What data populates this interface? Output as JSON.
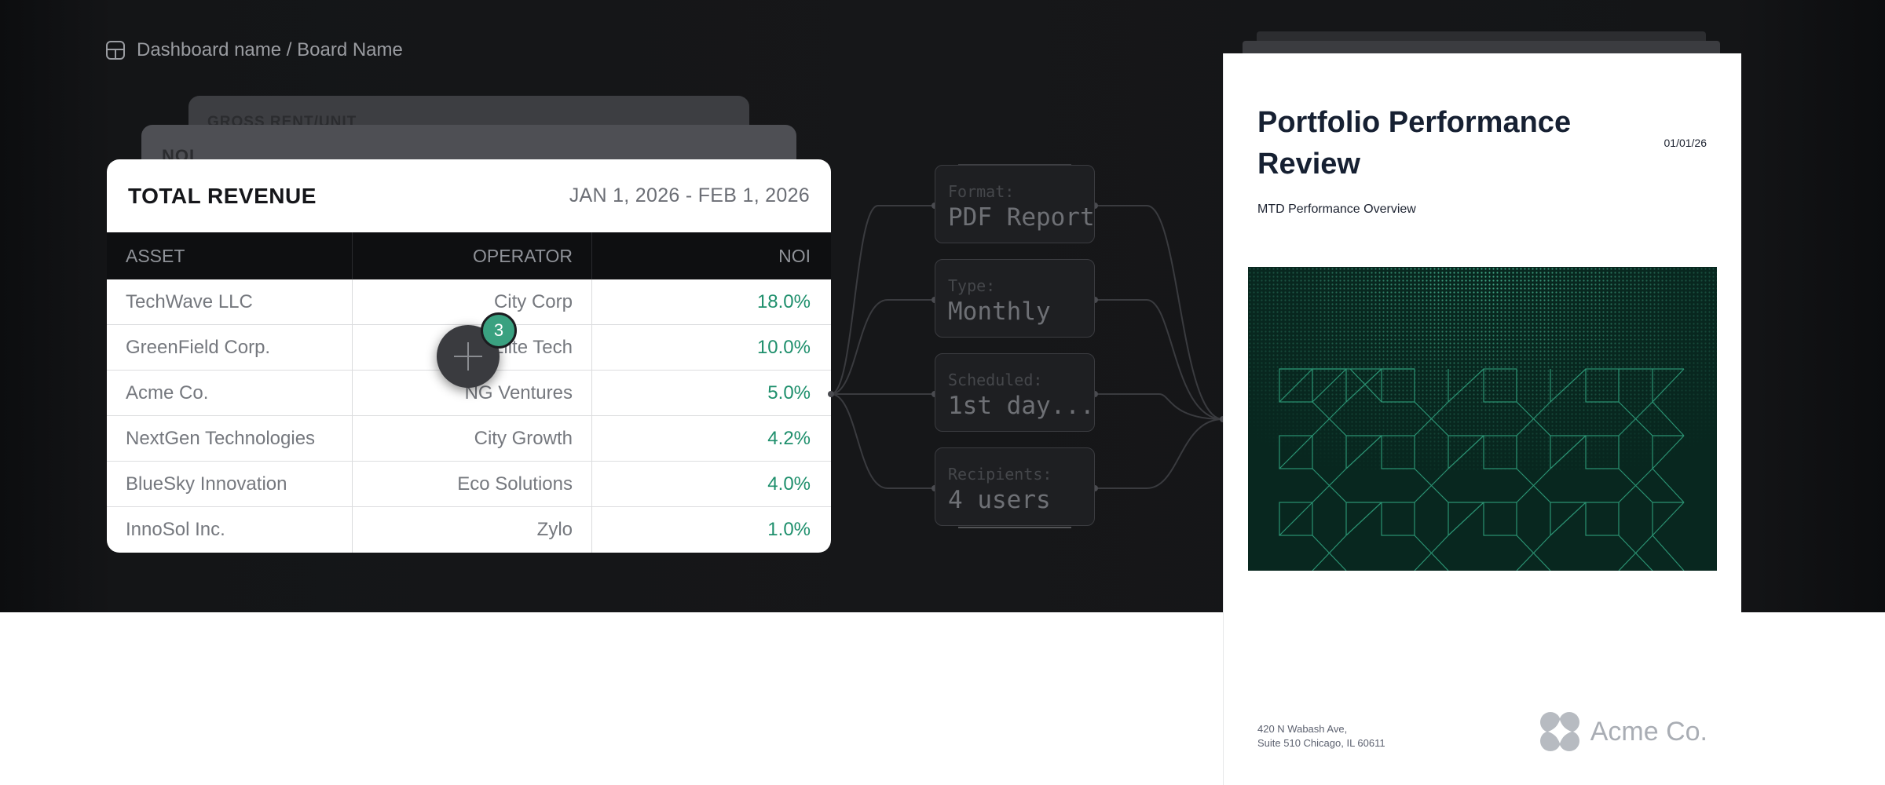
{
  "breadcrumb": {
    "text": "Dashboard name / Board Name"
  },
  "stacked_cards": {
    "back_label": "GROSS RENT/UNIT",
    "mid_label": "NOI"
  },
  "table": {
    "title": "TOTAL REVENUE",
    "date_range": "JAN 1, 2026 - FEB 1, 2026",
    "columns": [
      "ASSET",
      "OPERATOR",
      "NOI"
    ],
    "rows": [
      {
        "asset": "TechWave LLC",
        "operator": "City Corp",
        "noi": "18.0%"
      },
      {
        "asset": "GreenField Corp.",
        "operator": "Elite Tech",
        "noi": "10.0%"
      },
      {
        "asset": "Acme Co.",
        "operator": "NG Ventures",
        "noi": "5.0%"
      },
      {
        "asset": "NextGen Technologies",
        "operator": "City Growth",
        "noi": "4.2%"
      },
      {
        "asset": "BlueSky Innovation",
        "operator": "Eco Solutions",
        "noi": "4.0%"
      },
      {
        "asset": "InnoSol Inc.",
        "operator": "Zylo",
        "noi": "1.0%"
      }
    ]
  },
  "add_button": {
    "icon": "plus-icon",
    "badge_count": "3"
  },
  "report_settings": [
    {
      "label": "Format:",
      "value": "PDF Report"
    },
    {
      "label": "Type:",
      "value": "Monthly"
    },
    {
      "label": "Scheduled:",
      "value": "1st day..."
    },
    {
      "label": "Recipients:",
      "value": "4 users"
    }
  ],
  "report": {
    "title": "Portfolio Performance Review",
    "date": "01/01/26",
    "subtitle": "MTD Performance Overview",
    "address_line1": "420 N Wabash Ave,",
    "address_line2": "Suite 510 Chicago, IL 60611",
    "logo_text": "Acme Co."
  },
  "colors": {
    "accent_green": "#1e8f6c",
    "badge_green": "#3aa180",
    "dark_background": "#161719",
    "report_image_bg": "#08271f"
  }
}
